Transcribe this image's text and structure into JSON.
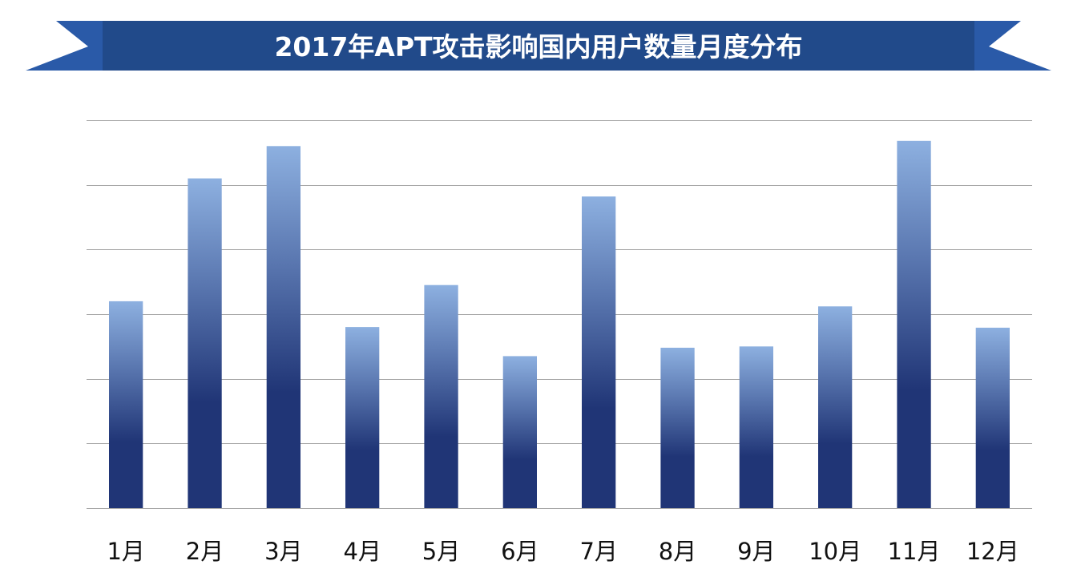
{
  "chart_data": {
    "type": "bar",
    "title": "2017年APT攻击影响国内用户数量月度分布",
    "xlabel": "",
    "ylabel": "",
    "categories": [
      "1月",
      "2月",
      "3月",
      "4月",
      "5月",
      "6月",
      "7月",
      "8月",
      "9月",
      "10月",
      "11月",
      "12月"
    ],
    "values": [
      3.2,
      5.1,
      5.6,
      2.8,
      3.45,
      2.35,
      4.82,
      2.48,
      2.5,
      3.12,
      5.68,
      2.79
    ],
    "ylim": [
      0,
      6
    ],
    "grid": true,
    "legend": "none",
    "colors": {
      "bar_top": "#8db0e0",
      "bar_bottom": "#203576",
      "banner": "#214a8a",
      "banner_ribbon": "#2a5aa8",
      "gridline": "#a6a6a6"
    }
  }
}
